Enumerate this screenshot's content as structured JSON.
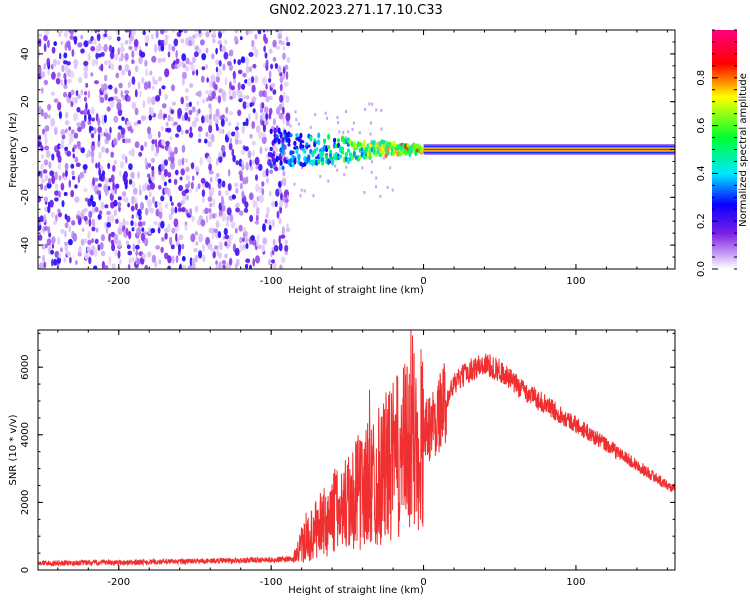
{
  "title": "GN02.2023.271.17.10.C33",
  "chart_data": [
    {
      "type": "heatmap",
      "xlabel": "Height of straight line (km)",
      "ylabel": "Frequency (Hz)",
      "xlim": [
        -253,
        165
      ],
      "ylim": [
        -50,
        50
      ],
      "x_ticks": [
        -200,
        -100,
        0,
        100
      ],
      "y_ticks": [
        -40,
        -20,
        0,
        20,
        40
      ],
      "colorbar": {
        "label": "Normalized spectral amplitude",
        "range": [
          0.0,
          1.0
        ],
        "ticks": [
          0.0,
          0.2,
          0.4,
          0.6,
          0.8
        ],
        "colormap": [
          "#ffffff",
          "#8a2be2",
          "#0000ff",
          "#00ffff",
          "#00ff00",
          "#ffff00",
          "#ff0000",
          "#ff00ff"
        ]
      },
      "features": {
        "noise_region_x": [
          -253,
          -90
        ],
        "noise_amplitude": 0.1,
        "transition_x": [
          -100,
          0
        ],
        "transition_amplitude": 0.5,
        "tone_x": [
          0,
          165
        ],
        "tone_frequency": 0,
        "tone_amplitude": 0.95
      }
    },
    {
      "type": "line",
      "xlabel": "Height of straight line (km)",
      "ylabel": "SNR (10 * v/v)",
      "xlim": [
        -253,
        165
      ],
      "ylim": [
        0,
        7100
      ],
      "x_ticks": [
        -200,
        -100,
        0,
        100
      ],
      "y_ticks": [
        0,
        2000,
        4000,
        6000
      ],
      "series": [
        {
          "color": "#f03030",
          "x": [
            -253,
            -200,
            -150,
            -100,
            -85,
            -80,
            -70,
            -60,
            -50,
            -40,
            -30,
            -20,
            -10,
            0,
            10,
            20,
            30,
            40,
            50,
            60,
            70,
            80,
            90,
            100,
            110,
            120,
            130,
            140,
            150,
            160,
            165
          ],
          "y": [
            200,
            220,
            260,
            300,
            320,
            700,
            1200,
            1600,
            2000,
            2400,
            2800,
            3200,
            3600,
            4000,
            4600,
            5500,
            5900,
            6100,
            5900,
            5500,
            5200,
            4900,
            4600,
            4300,
            4000,
            3700,
            3400,
            3100,
            2800,
            2500,
            2400
          ]
        }
      ],
      "grid": false
    }
  ]
}
